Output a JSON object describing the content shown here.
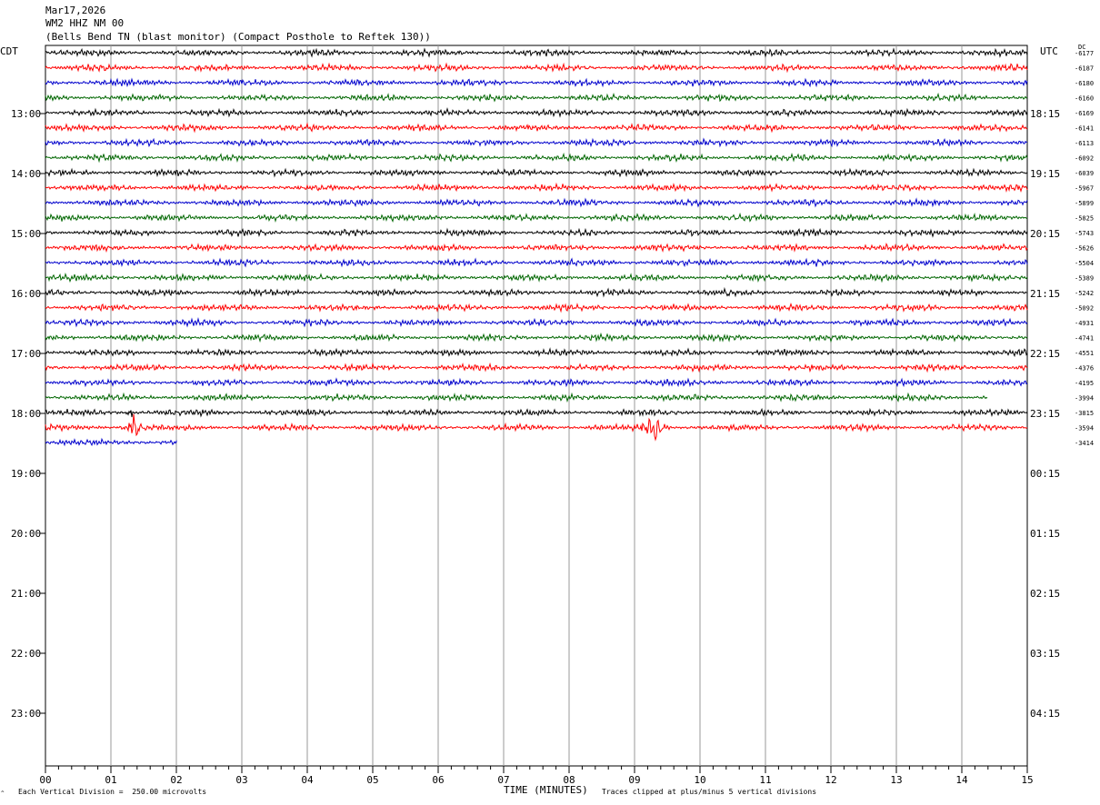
{
  "header": {
    "date": "Mar17,2026",
    "station": "WM2 HHZ NM 00",
    "description": "(Bells Bend TN (blast monitor) (Compact Posthole to Reftek 130))"
  },
  "left_zone": "CDT",
  "right_zone": "UTC",
  "dc_label": "DC",
  "footer": {
    "scale": "Each Vertical Division =  250.00 microvolts",
    "xlabel": "TIME (MINUTES)",
    "clip_note": "Traces clipped at plus/minus 5 vertical divisions",
    "mark": "^"
  },
  "chart_data": {
    "type": "line",
    "title": "",
    "xlabel": "TIME (MINUTES)",
    "xlim": [
      0,
      15
    ],
    "x_ticks": [
      "00",
      "01",
      "02",
      "03",
      "04",
      "05",
      "06",
      "07",
      "08",
      "09",
      "10",
      "11",
      "12",
      "13",
      "14",
      "15"
    ],
    "left_hour_labels": [
      "13:00",
      "14:00",
      "15:00",
      "16:00",
      "17:00",
      "18:00",
      "19:00",
      "20:00",
      "21:00",
      "22:00",
      "23:00"
    ],
    "right_hour_labels": [
      "18:15",
      "19:15",
      "20:15",
      "21:15",
      "22:15",
      "23:15",
      "00:15",
      "01:15",
      "02:15",
      "03:15",
      "04:15"
    ],
    "trace_colors": [
      "#000000",
      "#ff0000",
      "#0000cc",
      "#006600"
    ],
    "dc_offsets": [
      "-6177",
      "-6187",
      "-6180",
      "-6160",
      "-6169",
      "-6141",
      "-6113",
      "-6092",
      "-6039",
      "-5967",
      "-5899",
      "-5825",
      "-5743",
      "-5626",
      "-5504",
      "-5389",
      "-5242",
      "-5092",
      "-4931",
      "-4741",
      "-4551",
      "-4376",
      "-4195",
      "-3994",
      "-3815",
      "-3594",
      "-3414"
    ],
    "trace_end_minutes": [
      15,
      15,
      15,
      15,
      15,
      15,
      15,
      15,
      15,
      15,
      15,
      15,
      15,
      15,
      15,
      15,
      15,
      15,
      15,
      15,
      15,
      15,
      15,
      14.4,
      15,
      15,
      2
    ],
    "events": [
      {
        "trace": 21,
        "minute": 0.6,
        "amplitude": 0.5,
        "width": 0.25
      },
      {
        "trace": 25,
        "minute": 1.35,
        "amplitude": 5,
        "width": 0.2
      },
      {
        "trace": 25,
        "minute": 9.3,
        "amplitude": 6,
        "width": 0.25
      },
      {
        "trace": 14,
        "minute": 11.8,
        "amplitude": 1.8,
        "width": 0.1
      },
      {
        "trace": 16,
        "minute": 10.4,
        "amplitude": 0.8,
        "width": 0.3
      },
      {
        "trace": 19,
        "minute": 10.35,
        "amplitude": 1.2,
        "width": 0.1
      },
      {
        "trace": 1,
        "minute": 8.3,
        "amplitude": 0.7,
        "width": 0.3
      },
      {
        "trace": 1,
        "minute": 14.8,
        "amplitude": 0.8,
        "width": 0.3
      },
      {
        "trace": 7,
        "minute": 5.5,
        "amplitude": 0.6,
        "width": 0.5
      },
      {
        "trace": 24,
        "minute": 1.3,
        "amplitude": 3,
        "width": 0.1
      }
    ]
  }
}
